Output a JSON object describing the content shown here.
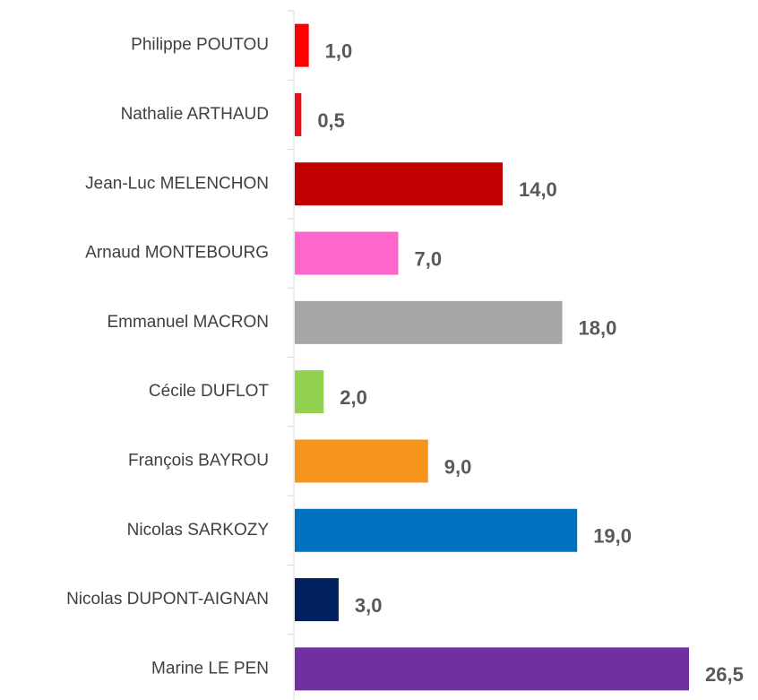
{
  "chart_data": {
    "type": "bar",
    "orientation": "horizontal",
    "categories": [
      "Philippe POUTOU",
      "Nathalie ARTHAUD",
      "Jean-Luc MELENCHON",
      "Arnaud MONTEBOURG",
      "Emmanuel MACRON",
      "Cécile DUFLOT",
      "François BAYROU",
      "Nicolas SARKOZY",
      "Nicolas DUPONT-AIGNAN",
      "Marine LE PEN"
    ],
    "values": [
      1.0,
      0.5,
      14.0,
      7.0,
      18.0,
      2.0,
      9.0,
      19.0,
      3.0,
      26.5
    ],
    "value_labels": [
      "1,0",
      "0,5",
      "14,0",
      "7,0",
      "18,0",
      "2,0",
      "9,0",
      "19,0",
      "3,0",
      "26,5"
    ],
    "colors": [
      "#ff0000",
      "#e8101a",
      "#c00000",
      "#ff66cc",
      "#a6a6a6",
      "#92d050",
      "#f7941d",
      "#0070c0",
      "#002060",
      "#7030a0"
    ]
  }
}
